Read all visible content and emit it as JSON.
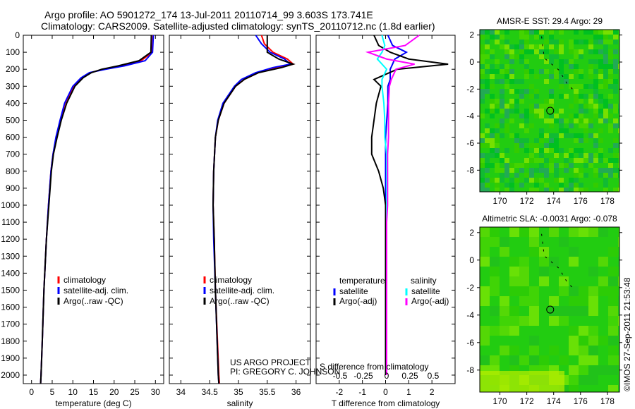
{
  "title_line1": "Argo profile: AO 5901272_174 13-Jul-2011 20110714_99 3.603S 173.741E",
  "title_line2": "Climatology: CARS2009. Satellite-adjusted climatology: synTS_20110712.nc (1.8d earlier)",
  "side_label": "©IMOS 27-Sep-2011 21:53:48",
  "project": [
    "US ARGO PROJECT",
    "PI: GREGORY C. JOHNSON"
  ],
  "chart_data": [
    {
      "type": "line",
      "xlabel": "temperature (deg C)",
      "xlim": [
        -2,
        32
      ],
      "ylim": [
        2050,
        0
      ],
      "xticks": [
        0,
        5,
        10,
        15,
        20,
        25,
        30
      ],
      "yticks": [
        0,
        100,
        200,
        300,
        400,
        500,
        600,
        700,
        800,
        900,
        1000,
        1100,
        1200,
        1300,
        1400,
        1500,
        1600,
        1700,
        1800,
        1900,
        2000
      ],
      "legend": [
        "climatology",
        "satellite-adj. clim.",
        "Argo(..raw -QC)"
      ],
      "depth": [
        0,
        100,
        150,
        180,
        200,
        220,
        250,
        300,
        400,
        500,
        600,
        700,
        800,
        1000,
        1200,
        1500,
        1800,
        2000,
        2050
      ],
      "series": [
        {
          "name": "climatology",
          "color": "#ff0000",
          "values": [
            29.4,
            29.2,
            26.5,
            21.5,
            17.5,
            14.2,
            12.2,
            10.2,
            8.1,
            7,
            6,
            5.2,
            4.7,
            4.1,
            3.6,
            3,
            2.6,
            2.3,
            2.2
          ]
        },
        {
          "name": "satellite-adj. clim.",
          "color": "#0000ff",
          "values": [
            29.5,
            29.3,
            27.5,
            22.5,
            18,
            14,
            12,
            10,
            8,
            6.9,
            5.9,
            5.2,
            4.7,
            4.1,
            3.6,
            3,
            2.6,
            2.3,
            2.2
          ]
        },
        {
          "name": "Argo(..raw -QC)",
          "color": "#000000",
          "values": [
            29,
            28.9,
            26,
            21,
            17,
            14.5,
            12.5,
            10.5,
            8.5,
            7.2,
            6.2,
            5.3,
            4.8,
            4.2,
            3.6,
            3,
            2.6,
            2.3,
            2.2
          ]
        }
      ]
    },
    {
      "type": "line",
      "xlabel": "salinity",
      "xlim": [
        33.8,
        36.25
      ],
      "ylim": [
        2050,
        0
      ],
      "xticks": [
        34,
        34.5,
        35,
        35.5,
        36
      ],
      "legend": [
        "climatology",
        "satellite-adj. clim.",
        "Argo(..raw -QC)"
      ],
      "depth": [
        0,
        50,
        100,
        140,
        170,
        190,
        220,
        260,
        300,
        400,
        500,
        600,
        800,
        1000,
        1200,
        1500,
        2000,
        2050
      ],
      "series": [
        {
          "name": "climatology",
          "color": "#ff0000",
          "values": [
            35.4,
            35.45,
            35.6,
            35.85,
            35.95,
            35.7,
            35.35,
            35.1,
            34.95,
            34.75,
            34.65,
            34.6,
            34.57,
            34.56,
            34.58,
            34.6,
            34.66,
            34.67
          ]
        },
        {
          "name": "satellite-adj. clim.",
          "color": "#0000ff",
          "values": [
            35.3,
            35.4,
            35.55,
            35.8,
            35.9,
            35.6,
            35.3,
            35.05,
            34.93,
            34.73,
            34.64,
            34.6,
            34.57,
            34.56,
            34.57,
            34.6,
            34.65,
            34.66
          ]
        },
        {
          "name": "Argo(..raw -QC)",
          "color": "#000000",
          "values": [
            35.5,
            35.5,
            35.5,
            35.7,
            35.95,
            35.75,
            35.35,
            35.1,
            34.95,
            34.75,
            34.65,
            34.6,
            34.57,
            34.56,
            34.58,
            34.6,
            34.65,
            34.66
          ]
        }
      ]
    },
    {
      "type": "line",
      "xlabel": "T difference from climatology",
      "xlabel2": "S difference from climatology",
      "xlim": [
        -3,
        3
      ],
      "xticks": [
        -2,
        -1,
        0,
        1,
        2
      ],
      "xticks2": [
        "-0.5",
        "-0.25",
        "0",
        "0.25",
        "0.5"
      ],
      "ylim": [
        2050,
        0
      ],
      "legend_headers": [
        "temperature",
        "salinity"
      ],
      "legend": [
        "satellite",
        "Argo(-adj)",
        "satellite",
        "Argo(-adj)"
      ],
      "depth": [
        0,
        60,
        100,
        140,
        170,
        200,
        260,
        300,
        400,
        500,
        600,
        700,
        800,
        900,
        1000,
        1100,
        1200,
        1500,
        2000
      ],
      "series": [
        {
          "name": "T satellite",
          "color": "#0000ff",
          "values": [
            0.1,
            0.3,
            0.9,
            0.4,
            0.3,
            0.2,
            0.2,
            0.1,
            0.1,
            0.05,
            0,
            0,
            0,
            0,
            0,
            0,
            0,
            0,
            0
          ]
        },
        {
          "name": "T Argo(-adj)",
          "color": "#000000",
          "values": [
            -0.5,
            -0.3,
            0.2,
            1,
            2.7,
            0.5,
            -0.5,
            -0.2,
            -0.4,
            -0.5,
            -0.6,
            -0.6,
            -0.3,
            -0.1,
            0,
            0,
            0,
            0,
            0
          ]
        },
        {
          "name": "S satellite",
          "color": "#00ffff",
          "values": [
            -0.05,
            -0.02,
            -0.05,
            -0.1,
            -0.05,
            0,
            -0.05,
            -0.05,
            -0.03,
            -0.02,
            -0.02,
            0,
            0,
            0,
            0,
            0,
            0,
            0,
            0
          ]
        },
        {
          "name": "S Argo(-adj)",
          "color": "#ff00ff",
          "values": [
            0.35,
            0.2,
            -0.2,
            0,
            0.3,
            0.1,
            0.05,
            0.03,
            0.02,
            0.02,
            0.02,
            0.01,
            0.01,
            0.01,
            0.01,
            0,
            0,
            0,
            0
          ]
        }
      ]
    },
    {
      "type": "heatmap",
      "title": "AMSR-E SST: 29.4  Argo: 29",
      "xlim": [
        168.5,
        178.9
      ],
      "ylim": [
        -9.6,
        2.4
      ],
      "xticks": [
        170,
        172,
        174,
        176,
        178
      ],
      "yticks": [
        2,
        0,
        -2,
        -4,
        -6,
        -8
      ],
      "marker": [
        173.741,
        -3.603
      ]
    },
    {
      "type": "heatmap",
      "title": "Altimetric SLA: -0.0031  Argo: -0.078",
      "xlim": [
        168.5,
        178.9
      ],
      "ylim": [
        -9.6,
        2.4
      ],
      "xticks": [
        170,
        172,
        174,
        176,
        178
      ],
      "yticks": [
        2,
        0,
        -2,
        -4,
        -6,
        -8
      ],
      "marker": [
        173.741,
        -3.603
      ]
    }
  ]
}
